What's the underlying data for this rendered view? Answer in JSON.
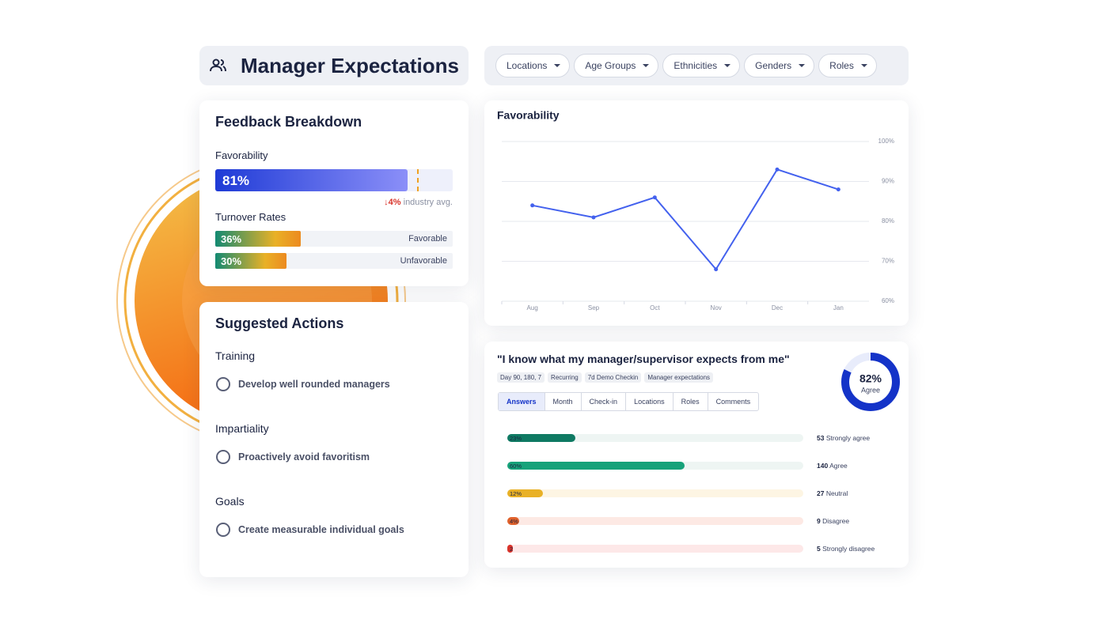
{
  "header": {
    "title": "Manager Expectations"
  },
  "filters": [
    "Locations",
    "Age Groups",
    "Ethnicities",
    "Genders",
    "Roles"
  ],
  "feedback": {
    "title": "Feedback Breakdown",
    "favorability_title": "Favorability",
    "xlim": [
      0,
      100
    ],
    "favorability": {
      "value": 81,
      "label": "81%"
    },
    "industry_delta": {
      "value": -4,
      "label": "4%"
    },
    "industry_text": "industry avg.",
    "turnover_title": "Turnover Rates",
    "turnover": [
      {
        "value": 36,
        "label": "36%",
        "name": "Favorable"
      },
      {
        "value": 30,
        "label": "30%",
        "name": "Unfavorable"
      }
    ]
  },
  "actions": {
    "title": "Suggested Actions",
    "groups": [
      {
        "heading": "Training",
        "item": "Develop well rounded managers"
      },
      {
        "heading": "Impartiality",
        "item": "Proactively avoid favoritism"
      },
      {
        "heading": "Goals",
        "item": "Create measurable individual goals"
      }
    ]
  },
  "chart_data": {
    "type": "line",
    "title": "Favorability",
    "categories": [
      "Aug",
      "Sep",
      "Oct",
      "Nov",
      "Dec",
      "Jan"
    ],
    "values": [
      84,
      81,
      86,
      68,
      93,
      88
    ],
    "color": "#4361ee",
    "ylim": [
      60,
      100
    ],
    "yticks": [
      {
        "value": 60,
        "label": "60%"
      },
      {
        "value": 70,
        "label": "70%"
      },
      {
        "value": 80,
        "label": "80%"
      },
      {
        "value": 90,
        "label": "90%"
      },
      {
        "value": 100,
        "label": "100%"
      }
    ],
    "grid": true
  },
  "question": {
    "title": "\"I know what my manager/supervisor expects from me\"",
    "tags": [
      "Day 90, 180, 7",
      "Recurring",
      "7d Demo Checkin",
      "Manager expectations"
    ],
    "agree": {
      "value": 82,
      "label": "82%",
      "text": "Agree"
    },
    "tabs": [
      "Answers",
      "Month",
      "Check-in",
      "Locations",
      "Roles",
      "Comments"
    ],
    "xlim": [
      0,
      100
    ],
    "answers": [
      {
        "value": 23,
        "label": "23%",
        "count": 53,
        "name": "Strongly agree",
        "color": "#0f7a63",
        "track": "#eef5f3"
      },
      {
        "value": 60,
        "label": "60%",
        "count": 140,
        "name": "Agree",
        "color": "#17a27a",
        "track": "#eef5f3"
      },
      {
        "value": 12,
        "label": "12%",
        "count": 27,
        "name": "Neutral",
        "color": "#e9b126",
        "track": "#fdf5e3"
      },
      {
        "value": 4,
        "label": "4%",
        "count": 9,
        "name": "Disagree",
        "color": "#e0622c",
        "track": "#fde9e4"
      },
      {
        "value": 2,
        "label": "2",
        "count": 5,
        "name": "Strongly disagree",
        "color": "#d9342b",
        "track": "#fde8e8"
      }
    ]
  }
}
